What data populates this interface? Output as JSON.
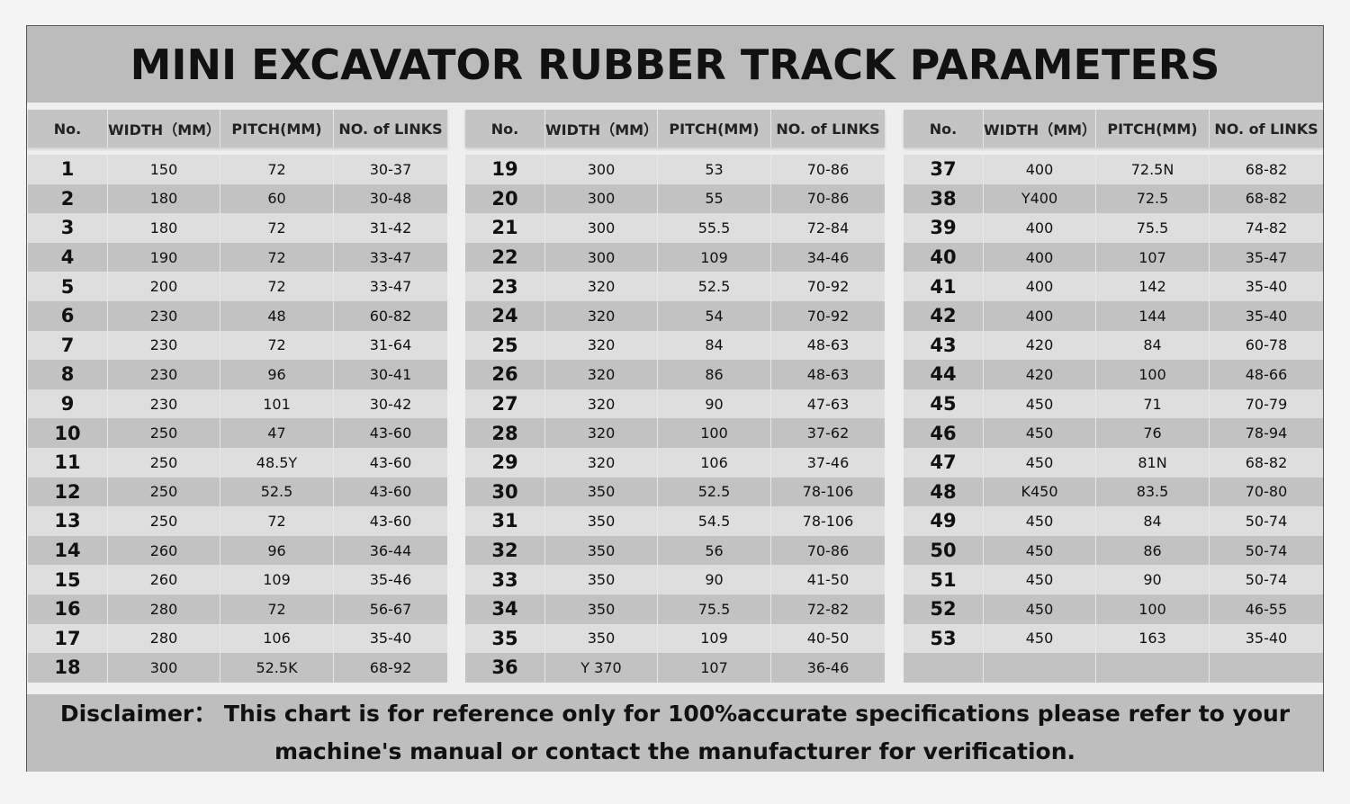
{
  "title": "MINI EXCAVATOR RUBBER TRACK PARAMETERS",
  "columns": [
    "No.",
    "WIDTH（MM）",
    "PITCH(MM)",
    "NO. of LINKS"
  ],
  "colors": {
    "title_band": "#bcbcbc",
    "header": "#c4c4c4",
    "row_light": "#dedede",
    "row_dark": "#c2c2c2"
  },
  "tables": [
    {
      "rows": [
        [
          "1",
          "150",
          "72",
          "30-37"
        ],
        [
          "2",
          "180",
          "60",
          "30-48"
        ],
        [
          "3",
          "180",
          "72",
          "31-42"
        ],
        [
          "4",
          "190",
          "72",
          "33-47"
        ],
        [
          "5",
          "200",
          "72",
          "33-47"
        ],
        [
          "6",
          "230",
          "48",
          "60-82"
        ],
        [
          "7",
          "230",
          "72",
          "31-64"
        ],
        [
          "8",
          "230",
          "96",
          "30-41"
        ],
        [
          "9",
          "230",
          "101",
          "30-42"
        ],
        [
          "10",
          "250",
          "47",
          "43-60"
        ],
        [
          "11",
          "250",
          "48.5Y",
          "43-60"
        ],
        [
          "12",
          "250",
          "52.5",
          "43-60"
        ],
        [
          "13",
          "250",
          "72",
          "43-60"
        ],
        [
          "14",
          "260",
          "96",
          "36-44"
        ],
        [
          "15",
          "260",
          "109",
          "35-46"
        ],
        [
          "16",
          "280",
          "72",
          "56-67"
        ],
        [
          "17",
          "280",
          "106",
          "35-40"
        ],
        [
          "18",
          "300",
          "52.5K",
          "68-92"
        ]
      ]
    },
    {
      "rows": [
        [
          "19",
          "300",
          "53",
          "70-86"
        ],
        [
          "20",
          "300",
          "55",
          "70-86"
        ],
        [
          "21",
          "300",
          "55.5",
          "72-84"
        ],
        [
          "22",
          "300",
          "109",
          "34-46"
        ],
        [
          "23",
          "320",
          "52.5",
          "70-92"
        ],
        [
          "24",
          "320",
          "54",
          "70-92"
        ],
        [
          "25",
          "320",
          "84",
          "48-63"
        ],
        [
          "26",
          "320",
          "86",
          "48-63"
        ],
        [
          "27",
          "320",
          "90",
          "47-63"
        ],
        [
          "28",
          "320",
          "100",
          "37-62"
        ],
        [
          "29",
          "320",
          "106",
          "37-46"
        ],
        [
          "30",
          "350",
          "52.5",
          "78-106"
        ],
        [
          "31",
          "350",
          "54.5",
          "78-106"
        ],
        [
          "32",
          "350",
          "56",
          "70-86"
        ],
        [
          "33",
          "350",
          "90",
          "41-50"
        ],
        [
          "34",
          "350",
          "75.5",
          "72-82"
        ],
        [
          "35",
          "350",
          "109",
          "40-50"
        ],
        [
          "36",
          "Y 370",
          "107",
          "36-46"
        ]
      ]
    },
    {
      "rows": [
        [
          "37",
          "400",
          "72.5N",
          "68-82"
        ],
        [
          "38",
          "Y400",
          "72.5",
          "68-82"
        ],
        [
          "39",
          "400",
          "75.5",
          "74-82"
        ],
        [
          "40",
          "400",
          "107",
          "35-47"
        ],
        [
          "41",
          "400",
          "142",
          "35-40"
        ],
        [
          "42",
          "400",
          "144",
          "35-40"
        ],
        [
          "43",
          "420",
          "84",
          "60-78"
        ],
        [
          "44",
          "420",
          "100",
          "48-66"
        ],
        [
          "45",
          "450",
          "71",
          "70-79"
        ],
        [
          "46",
          "450",
          "76",
          "78-94"
        ],
        [
          "47",
          "450",
          "81N",
          "68-82"
        ],
        [
          "48",
          "K450",
          "83.5",
          "70-80"
        ],
        [
          "49",
          "450",
          "84",
          "50-74"
        ],
        [
          "50",
          "450",
          "86",
          "50-74"
        ],
        [
          "51",
          "450",
          "90",
          "50-74"
        ],
        [
          "52",
          "450",
          "100",
          "46-55"
        ],
        [
          "53",
          "450",
          "163",
          "35-40"
        ],
        [
          "",
          "",
          "",
          ""
        ]
      ]
    }
  ],
  "disclaimer": {
    "line1": "Disclaimer：  This chart is for reference only for 100%accurate specifications please refer to your",
    "line2": "machine's manual or contact the manufacturer for verification."
  }
}
